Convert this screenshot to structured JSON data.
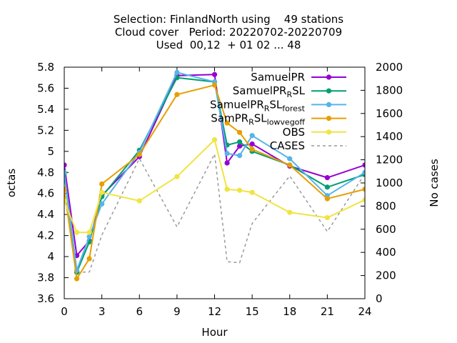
{
  "chart_data": {
    "type": "line",
    "title_lines": [
      "Selection: FinlandNorth using    49 stations",
      "Cloud cover   Period: 20220702-20220709",
      "Used  00,12  + 01 02 ... 48"
    ],
    "xlabel": "Hour",
    "ylabel": "octas",
    "y2label": "No cases",
    "xlim": [
      0,
      24
    ],
    "ylim": [
      3.6,
      5.8
    ],
    "y2lim": [
      0,
      2000
    ],
    "xticks": [
      0,
      3,
      6,
      9,
      12,
      15,
      18,
      21,
      24
    ],
    "yticks": [
      3.6,
      3.8,
      4,
      4.2,
      4.4,
      4.6,
      4.8,
      5,
      5.2,
      5.4,
      5.6,
      5.8
    ],
    "ytick_labels": [
      "3.6",
      "3.8",
      "4",
      "4.2",
      "4.4",
      "4.6",
      "4.8",
      "5",
      "5.2",
      "5.4",
      "5.6",
      "5.8"
    ],
    "y2ticks": [
      0,
      200,
      400,
      600,
      800,
      1000,
      1200,
      1400,
      1600,
      1800,
      2000
    ],
    "legend_position": "top-right",
    "series": [
      {
        "name_parts": [
          [
            "SamuelPR",
            ""
          ]
        ],
        "color": "#9400d3",
        "marker": "circle",
        "axis": "y1",
        "x": [
          0,
          1,
          2,
          3,
          6,
          9,
          12,
          13,
          14,
          15,
          18,
          21,
          24
        ],
        "y": [
          4.87,
          4.01,
          4.15,
          4.58,
          4.95,
          5.72,
          5.73,
          4.89,
          5.05,
          5.07,
          4.86,
          4.75,
          4.87
        ]
      },
      {
        "name_parts": [
          [
            "SamuelPR",
            ""
          ],
          [
            "R",
            "sub"
          ],
          [
            "SL",
            ""
          ]
        ],
        "color": "#009e73",
        "marker": "circle",
        "axis": "y1",
        "x": [
          0,
          1,
          2,
          3,
          6,
          9,
          12,
          13,
          14,
          15,
          18,
          21,
          24
        ],
        "y": [
          4.79,
          3.85,
          4.14,
          4.57,
          5.01,
          5.7,
          5.66,
          5.06,
          5.09,
          5.0,
          4.87,
          4.66,
          4.78
        ]
      },
      {
        "name_parts": [
          [
            "SamuelPR",
            ""
          ],
          [
            "R",
            "sub"
          ],
          [
            "SL",
            ""
          ],
          [
            "forest",
            "sub"
          ]
        ],
        "color": "#56b4e9",
        "marker": "circle",
        "axis": "y1",
        "x": [
          0,
          1,
          2,
          3,
          6,
          9,
          12,
          13,
          14,
          15,
          18,
          21,
          24
        ],
        "y": [
          4.8,
          3.87,
          4.19,
          4.5,
          4.99,
          5.75,
          5.66,
          4.98,
          4.96,
          5.15,
          4.93,
          4.58,
          4.8
        ]
      },
      {
        "name_parts": [
          [
            "SamPR",
            ""
          ],
          [
            "R",
            "sub"
          ],
          [
            "SL",
            ""
          ],
          [
            "lowvegoff",
            "sub"
          ]
        ],
        "color": "#e69f00",
        "marker": "circle",
        "axis": "y1",
        "x": [
          0,
          1,
          2,
          3,
          6,
          9,
          12,
          13,
          14,
          15,
          18,
          21,
          24
        ],
        "y": [
          4.64,
          3.79,
          3.98,
          4.69,
          4.97,
          5.54,
          5.63,
          5.27,
          5.18,
          5.02,
          4.87,
          4.55,
          4.64
        ]
      },
      {
        "name_parts": [
          [
            "OBS",
            ""
          ]
        ],
        "color": "#f0e442",
        "marker": "circle",
        "axis": "y1",
        "x": [
          0,
          1,
          2,
          3,
          6,
          9,
          12,
          13,
          14,
          15,
          18,
          21,
          24
        ],
        "y": [
          4.53,
          4.23,
          4.23,
          4.61,
          4.53,
          4.76,
          5.11,
          4.64,
          4.63,
          4.61,
          4.42,
          4.37,
          4.54
        ]
      },
      {
        "name_parts": [
          [
            "CASES",
            ""
          ]
        ],
        "color": "#999999",
        "marker": "none",
        "dash": "4,4",
        "axis": "y2",
        "x": [
          0,
          1,
          2,
          3,
          6,
          9,
          12,
          13,
          14,
          15,
          18,
          21,
          24
        ],
        "y": [
          1110,
          230,
          230,
          550,
          1210,
          620,
          1250,
          320,
          310,
          650,
          1060,
          580,
          1080
        ]
      }
    ]
  }
}
